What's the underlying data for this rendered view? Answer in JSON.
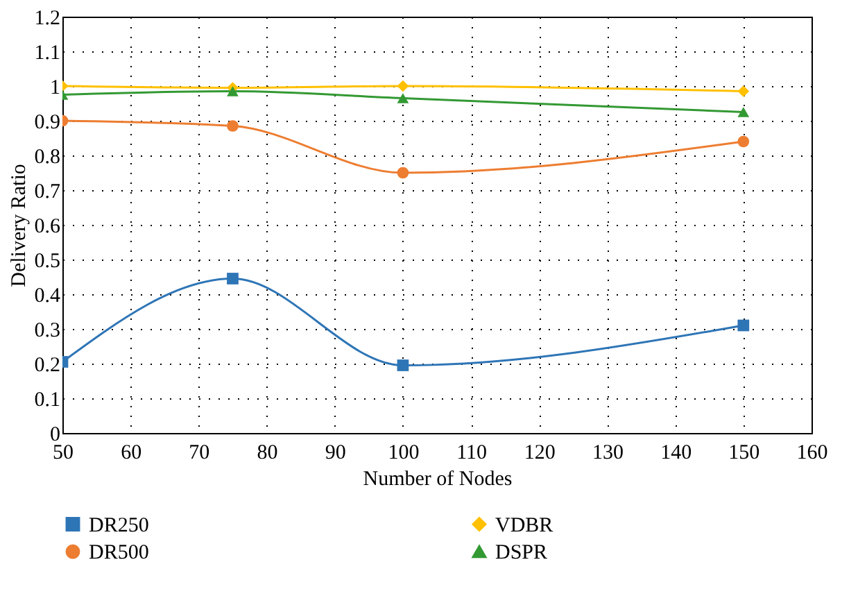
{
  "chart_data": {
    "type": "line",
    "xlabel": "Number of Nodes",
    "ylabel": "Delivery Ratio",
    "x": [
      50,
      75,
      100,
      150
    ],
    "series": [
      {
        "name": "DR250",
        "color": "#2e75b6",
        "marker": "square",
        "values": [
          0.205,
          0.445,
          0.195,
          0.31
        ]
      },
      {
        "name": "DR500",
        "color": "#ed7d31",
        "marker": "circle",
        "values": [
          0.9,
          0.885,
          0.75,
          0.84
        ]
      },
      {
        "name": "VDBR",
        "color": "#ffc000",
        "marker": "diamond",
        "values": [
          1.0,
          0.995,
          1.0,
          0.985
        ]
      },
      {
        "name": "DSPR",
        "color": "#339933",
        "marker": "triangle",
        "values": [
          0.975,
          0.985,
          0.965,
          0.925
        ]
      }
    ],
    "xlim": [
      50,
      160
    ],
    "xticks": [
      50,
      60,
      70,
      80,
      90,
      100,
      110,
      120,
      130,
      140,
      150,
      160
    ],
    "ylim": [
      0,
      1.2
    ],
    "yticks": [
      0,
      0.1,
      0.2,
      0.3,
      0.4,
      0.5,
      0.6,
      0.7,
      0.8,
      0.9,
      1,
      1.1,
      1.2
    ],
    "grid": true,
    "legend": "bottom",
    "line_style": "solid"
  }
}
